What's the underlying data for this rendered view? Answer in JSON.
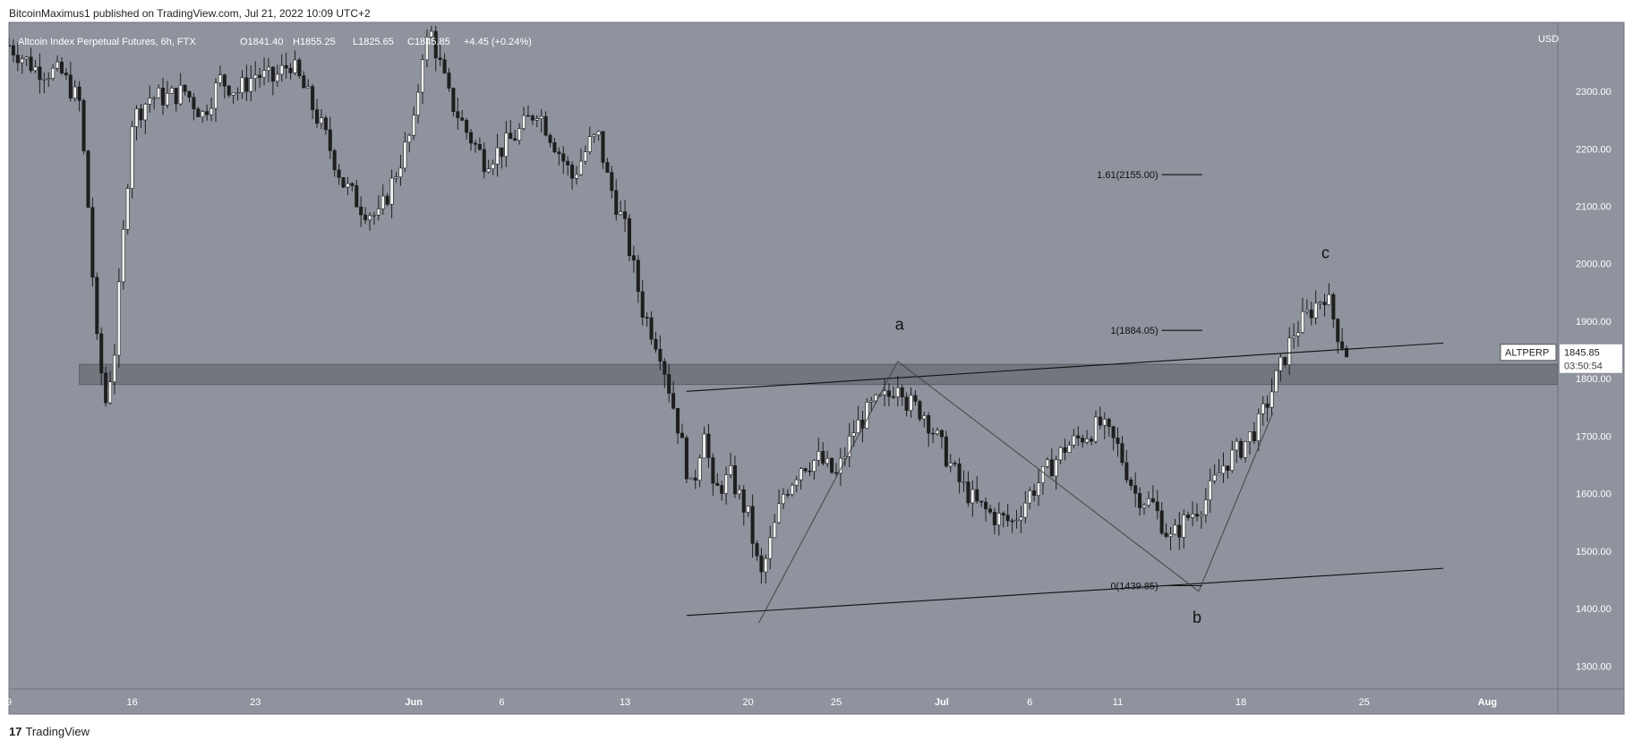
{
  "publisher_line": "BitcoinMaximus1 published on TradingView.com, Jul 21, 2022 10:09 UTC+2",
  "footer": {
    "logo_mark": "17",
    "brand": "TradingView"
  },
  "chart_data": {
    "type": "candlestick",
    "header": {
      "symbol_text": "Altcoin Index Perpetual Futures, 6h, FTX",
      "open": "O1841.40",
      "high": "H1855.25",
      "low": "L1825.65",
      "close": "C1845.85",
      "change": "+4.45 (+0.24%)"
    },
    "currency": "USD",
    "ylim": [
      1260,
      2420
    ],
    "y_ticks": [
      "2300.00",
      "2200.00",
      "2100.00",
      "2000.00",
      "1900.00",
      "1800.00",
      "1700.00",
      "1600.00",
      "1500.00",
      "1400.00",
      "1300.00"
    ],
    "y_tick_values": [
      2300,
      2200,
      2100,
      2000,
      1900,
      1800,
      1700,
      1600,
      1500,
      1400,
      1300
    ],
    "x_ticks": [
      "9",
      "16",
      "23",
      "Jun",
      "6",
      "13",
      "20",
      "25",
      "Jul",
      "6",
      "11",
      "18",
      "25",
      "Aug"
    ],
    "x_tick_days": [
      0,
      7,
      14,
      23,
      28,
      35,
      42,
      47,
      53,
      58,
      63,
      70,
      77,
      84
    ],
    "x_day_range": [
      0,
      88
    ],
    "price_label": {
      "symbol": "ALTPERP",
      "price": "1845.85",
      "countdown": "03:50:54",
      "value": 1845.85
    },
    "support_zone": {
      "from_day": 4,
      "to_day": 88,
      "low": 1790,
      "high": 1825
    },
    "trendlines": [
      {
        "name": "upper",
        "points": [
          [
            38.5,
            1778
          ],
          [
            81.5,
            1862
          ]
        ]
      },
      {
        "name": "lower",
        "points": [
          [
            38.5,
            1388
          ],
          [
            81.5,
            1470
          ]
        ]
      }
    ],
    "wave_path": [
      [
        42.6,
        1375
      ],
      [
        50.5,
        1830
      ],
      [
        67.6,
        1430
      ],
      [
        71.8,
        1740
      ]
    ],
    "wave_labels": [
      {
        "text": "a",
        "day": 50.6,
        "price": 1885
      },
      {
        "text": "b",
        "day": 67.5,
        "price": 1375
      },
      {
        "text": "c",
        "day": 74.8,
        "price": 2010
      }
    ],
    "fib_levels": [
      {
        "label": "1.61(2155.00)",
        "price": 2155.0,
        "from_day": 65.5,
        "to_day": 67.8
      },
      {
        "label": "1(1884.05)",
        "price": 1884.05,
        "from_day": 65.5,
        "to_day": 67.8
      },
      {
        "label": "0(1439.85)",
        "price": 1439.85,
        "from_day": 65.5,
        "to_day": 67.8
      }
    ],
    "anchors": [
      [
        0,
        2380
      ],
      [
        1.5,
        2340
      ],
      [
        3,
        2330
      ],
      [
        4,
        2280
      ],
      [
        4.5,
        2100
      ],
      [
        5,
        1860
      ],
      [
        5.5,
        1760
      ],
      [
        6,
        1850
      ],
      [
        7,
        2250
      ],
      [
        8,
        2290
      ],
      [
        9,
        2290
      ],
      [
        10,
        2300
      ],
      [
        11,
        2260
      ],
      [
        12,
        2320
      ],
      [
        13,
        2300
      ],
      [
        14,
        2330
      ],
      [
        15,
        2320
      ],
      [
        16,
        2350
      ],
      [
        17,
        2290
      ],
      [
        18,
        2220
      ],
      [
        19,
        2140
      ],
      [
        20,
        2100
      ],
      [
        21,
        2080
      ],
      [
        22,
        2160
      ],
      [
        23,
        2240
      ],
      [
        23.5,
        2370
      ],
      [
        24,
        2400
      ],
      [
        25,
        2290
      ],
      [
        26,
        2230
      ],
      [
        27,
        2180
      ],
      [
        28,
        2200
      ],
      [
        29,
        2230
      ],
      [
        30,
        2270
      ],
      [
        31,
        2210
      ],
      [
        32,
        2150
      ],
      [
        33,
        2210
      ],
      [
        33.5,
        2220
      ],
      [
        34,
        2150
      ],
      [
        35,
        2060
      ],
      [
        36,
        1920
      ],
      [
        37,
        1850
      ],
      [
        38,
        1720
      ],
      [
        38.8,
        1600
      ],
      [
        39.5,
        1720
      ],
      [
        40,
        1600
      ],
      [
        41,
        1630
      ],
      [
        42,
        1560
      ],
      [
        42.7,
        1450
      ],
      [
        44,
        1600
      ],
      [
        45,
        1650
      ],
      [
        46,
        1660
      ],
      [
        47,
        1630
      ],
      [
        48,
        1710
      ],
      [
        49,
        1750
      ],
      [
        50,
        1770
      ],
      [
        50.6,
        1805
      ],
      [
        51,
        1760
      ],
      [
        52,
        1740
      ],
      [
        53,
        1680
      ],
      [
        54,
        1620
      ],
      [
        55,
        1580
      ],
      [
        56,
        1560
      ],
      [
        57,
        1550
      ],
      [
        58,
        1600
      ],
      [
        59,
        1640
      ],
      [
        60,
        1680
      ],
      [
        61,
        1700
      ],
      [
        62,
        1720
      ],
      [
        63,
        1680
      ],
      [
        64,
        1600
      ],
      [
        65,
        1580
      ],
      [
        66,
        1520
      ],
      [
        67,
        1560
      ],
      [
        68,
        1590
      ],
      [
        69,
        1650
      ],
      [
        70,
        1680
      ],
      [
        71,
        1720
      ],
      [
        72,
        1800
      ],
      [
        73,
        1880
      ],
      [
        74,
        1920
      ],
      [
        74.8,
        1950
      ],
      [
        75.5,
        1880
      ],
      [
        76,
        1846
      ]
    ]
  }
}
